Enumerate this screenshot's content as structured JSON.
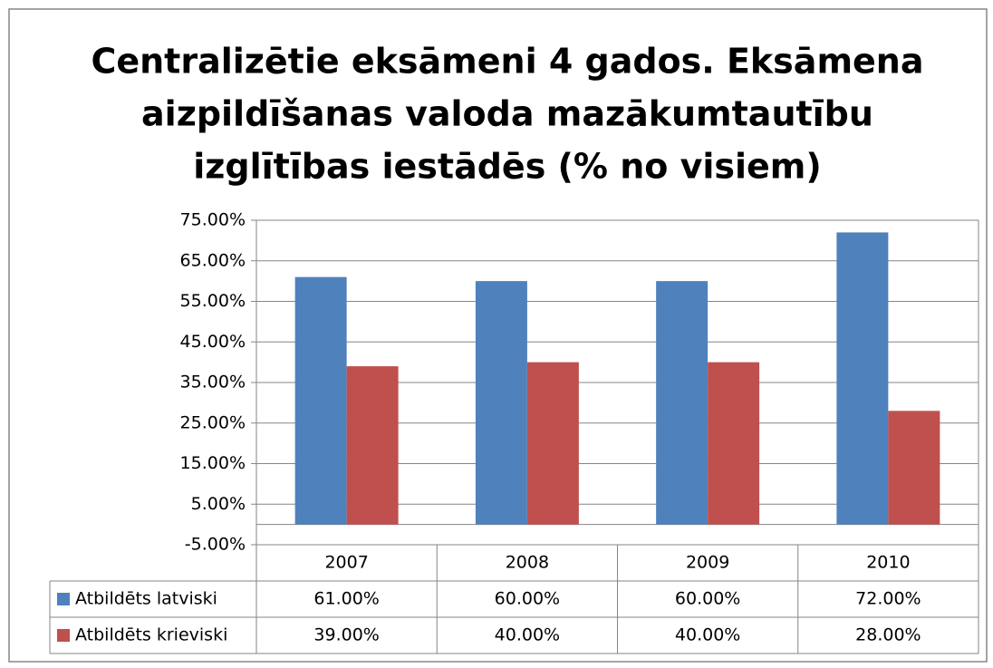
{
  "chart_data": {
    "type": "bar",
    "title": [
      "Centralizētie eksāmeni 4 gados. Eksāmena",
      "aizpildīšanas valoda mazākumtautību",
      "izglītības iestādēs (% no visiem)"
    ],
    "categories": [
      "2007",
      "2008",
      "2009",
      "2010"
    ],
    "series": [
      {
        "name": "Atbildēts latviski",
        "color": "#4f81bd",
        "values": [
          61,
          60,
          60,
          72
        ],
        "value_labels": [
          "61.00%",
          "60.00%",
          "60.00%",
          "72.00%"
        ]
      },
      {
        "name": "Atbildēts krieviski",
        "color": "#c0504d",
        "values": [
          39,
          40,
          40,
          28
        ],
        "value_labels": [
          "39.00%",
          "40.00%",
          "40.00%",
          "28.00%"
        ]
      }
    ],
    "ylim": [
      -5,
      75
    ],
    "yticks": [
      {
        "value": -5,
        "label": "-5.00%"
      },
      {
        "value": 5,
        "label": "5.00%"
      },
      {
        "value": 15,
        "label": "15.00%"
      },
      {
        "value": 25,
        "label": "25.00%"
      },
      {
        "value": 35,
        "label": "35.00%"
      },
      {
        "value": 45,
        "label": "45.00%"
      },
      {
        "value": 55,
        "label": "55.00%"
      },
      {
        "value": 65,
        "label": "65.00%"
      },
      {
        "value": 75,
        "label": "75.00%"
      }
    ],
    "grid": true
  }
}
